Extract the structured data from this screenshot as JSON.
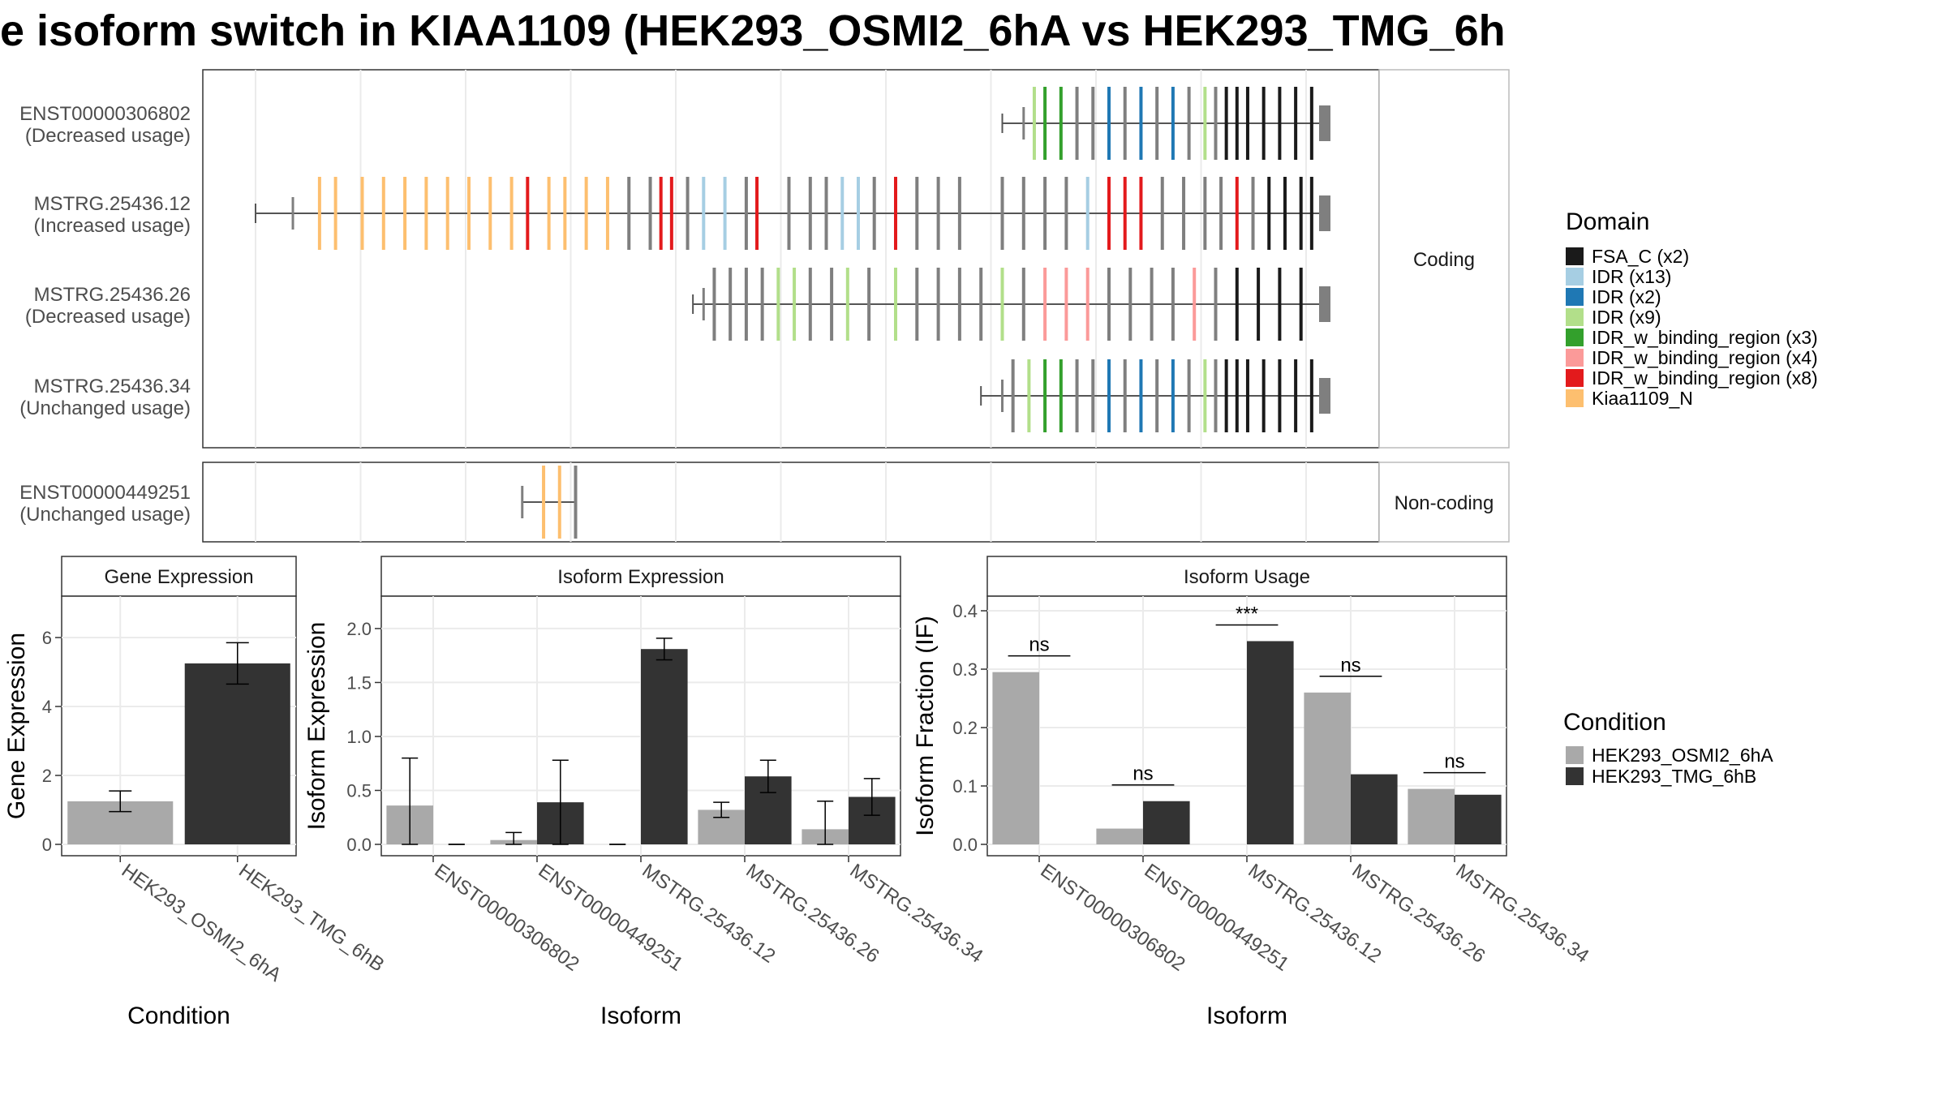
{
  "title": "e isoform switch in KIAA1109 (HEK293_OSMI2_6hA vs HEK293_TMG_6h",
  "colors": {
    "osmi": "#a9a9a9",
    "tmg": "#333333",
    "intron": "#555555",
    "exon": "#7f7f7f",
    "grid": "#ebebeb"
  },
  "structure": {
    "facets": {
      "coding": "Coding",
      "noncoding": "Non-coding"
    },
    "transcripts": [
      {
        "id": "ENST00000306802",
        "usage": "(Decreased usage)",
        "group": "coding",
        "start": 0.7,
        "cds_start": 0.72,
        "exons": [
          [
            0.73,
            "idr_pale"
          ],
          [
            0.74,
            "idr_w_green"
          ],
          [
            0.755,
            "idr_w_green"
          ],
          [
            0.77,
            "exon"
          ],
          [
            0.785,
            "exon"
          ],
          [
            0.8,
            "idr_blue"
          ],
          [
            0.815,
            "exon"
          ],
          [
            0.83,
            "idr_blue"
          ],
          [
            0.845,
            "exon"
          ],
          [
            0.86,
            "idr_blue"
          ],
          [
            0.875,
            "exon"
          ],
          [
            0.89,
            "idr_pale"
          ],
          [
            0.9,
            "exon"
          ],
          [
            0.91,
            "fsa"
          ],
          [
            0.92,
            "fsa"
          ],
          [
            0.93,
            "fsa"
          ],
          [
            0.945,
            "fsa"
          ],
          [
            0.96,
            "fsa"
          ],
          [
            0.975,
            "fsa"
          ],
          [
            0.99,
            "fsa"
          ]
        ]
      },
      {
        "id": "MSTRG.25436.12",
        "usage": "(Increased usage)",
        "group": "coding",
        "start": 0.0,
        "cds_start": 0.035,
        "exons": [
          [
            0.06,
            "kiaa"
          ],
          [
            0.075,
            "kiaa"
          ],
          [
            0.1,
            "kiaa"
          ],
          [
            0.12,
            "kiaa"
          ],
          [
            0.14,
            "kiaa"
          ],
          [
            0.16,
            "kiaa"
          ],
          [
            0.18,
            "kiaa"
          ],
          [
            0.2,
            "kiaa"
          ],
          [
            0.22,
            "kiaa"
          ],
          [
            0.24,
            "kiaa"
          ],
          [
            0.255,
            "idr_w_red"
          ],
          [
            0.275,
            "kiaa"
          ],
          [
            0.29,
            "kiaa"
          ],
          [
            0.31,
            "kiaa"
          ],
          [
            0.33,
            "kiaa"
          ],
          [
            0.35,
            "exon"
          ],
          [
            0.37,
            "exon"
          ],
          [
            0.38,
            "idr_w_red"
          ],
          [
            0.39,
            "idr_w_red"
          ],
          [
            0.405,
            "exon"
          ],
          [
            0.42,
            "idr_light"
          ],
          [
            0.44,
            "idr_light"
          ],
          [
            0.46,
            "exon"
          ],
          [
            0.47,
            "idr_w_red"
          ],
          [
            0.5,
            "exon"
          ],
          [
            0.52,
            "exon"
          ],
          [
            0.535,
            "exon"
          ],
          [
            0.55,
            "idr_light"
          ],
          [
            0.565,
            "idr_light"
          ],
          [
            0.58,
            "exon"
          ],
          [
            0.6,
            "idr_w_red"
          ],
          [
            0.62,
            "exon"
          ],
          [
            0.64,
            "exon"
          ],
          [
            0.66,
            "exon"
          ],
          [
            0.7,
            "exon"
          ],
          [
            0.72,
            "exon"
          ],
          [
            0.74,
            "exon"
          ],
          [
            0.76,
            "exon"
          ],
          [
            0.78,
            "idr_light"
          ],
          [
            0.8,
            "idr_w_red"
          ],
          [
            0.815,
            "idr_w_red"
          ],
          [
            0.83,
            "idr_w_red"
          ],
          [
            0.85,
            "exon"
          ],
          [
            0.87,
            "exon"
          ],
          [
            0.89,
            "exon"
          ],
          [
            0.905,
            "exon"
          ],
          [
            0.92,
            "idr_w_red"
          ],
          [
            0.935,
            "exon"
          ],
          [
            0.95,
            "fsa"
          ],
          [
            0.965,
            "fsa"
          ],
          [
            0.98,
            "fsa"
          ],
          [
            0.99,
            "fsa"
          ]
        ]
      },
      {
        "id": "MSTRG.25436.26",
        "usage": "(Decreased usage)",
        "group": "coding",
        "start": 0.41,
        "cds_start": 0.42,
        "exons": [
          [
            0.43,
            "exon"
          ],
          [
            0.445,
            "exon"
          ],
          [
            0.46,
            "exon"
          ],
          [
            0.475,
            "exon"
          ],
          [
            0.49,
            "idr_pale"
          ],
          [
            0.505,
            "idr_pale"
          ],
          [
            0.52,
            "exon"
          ],
          [
            0.54,
            "exon"
          ],
          [
            0.555,
            "idr_pale"
          ],
          [
            0.575,
            "exon"
          ],
          [
            0.6,
            "idr_pale"
          ],
          [
            0.62,
            "exon"
          ],
          [
            0.64,
            "exon"
          ],
          [
            0.66,
            "exon"
          ],
          [
            0.68,
            "exon"
          ],
          [
            0.7,
            "idr_pale"
          ],
          [
            0.72,
            "exon"
          ],
          [
            0.74,
            "idr_w_pink"
          ],
          [
            0.76,
            "idr_w_pink"
          ],
          [
            0.78,
            "idr_w_pink"
          ],
          [
            0.8,
            "exon"
          ],
          [
            0.82,
            "exon"
          ],
          [
            0.84,
            "exon"
          ],
          [
            0.86,
            "exon"
          ],
          [
            0.88,
            "idr_w_pink"
          ],
          [
            0.9,
            "exon"
          ],
          [
            0.92,
            "fsa"
          ],
          [
            0.94,
            "fsa"
          ],
          [
            0.96,
            "fsa"
          ],
          [
            0.98,
            "fsa"
          ]
        ]
      },
      {
        "id": "MSTRG.25436.34",
        "usage": "(Unchanged usage)",
        "group": "coding",
        "start": 0.68,
        "cds_start": 0.7,
        "exons": [
          [
            0.71,
            "exon"
          ],
          [
            0.725,
            "idr_pale"
          ],
          [
            0.74,
            "idr_w_green"
          ],
          [
            0.755,
            "idr_w_green"
          ],
          [
            0.77,
            "exon"
          ],
          [
            0.785,
            "exon"
          ],
          [
            0.8,
            "idr_blue"
          ],
          [
            0.815,
            "exon"
          ],
          [
            0.83,
            "idr_blue"
          ],
          [
            0.845,
            "exon"
          ],
          [
            0.86,
            "idr_blue"
          ],
          [
            0.875,
            "exon"
          ],
          [
            0.89,
            "idr_pale"
          ],
          [
            0.9,
            "exon"
          ],
          [
            0.91,
            "fsa"
          ],
          [
            0.92,
            "fsa"
          ],
          [
            0.93,
            "fsa"
          ],
          [
            0.945,
            "fsa"
          ],
          [
            0.96,
            "fsa"
          ],
          [
            0.975,
            "fsa"
          ],
          [
            0.99,
            "fsa"
          ]
        ]
      },
      {
        "id": "ENST00000449251",
        "usage": "(Unchanged usage)",
        "group": "noncoding",
        "start": 0.25,
        "cds_start": 0.25,
        "end": 0.3,
        "exons": [
          [
            0.27,
            "kiaa"
          ],
          [
            0.285,
            "kiaa"
          ],
          [
            0.3,
            "exon"
          ]
        ]
      }
    ]
  },
  "legend_domain": {
    "title": "Domain",
    "items": [
      {
        "key": "fsa",
        "label": "FSA_C (x2)",
        "color": "#1a1a1a"
      },
      {
        "key": "idr_light",
        "label": "IDR (x13)",
        "color": "#a6cee3"
      },
      {
        "key": "idr_blue",
        "label": "IDR (x2)",
        "color": "#1f78b4"
      },
      {
        "key": "idr_pale",
        "label": "IDR (x9)",
        "color": "#b2df8a"
      },
      {
        "key": "idr_w_green",
        "label": "IDR_w_binding_region (x3)",
        "color": "#33a02c"
      },
      {
        "key": "idr_w_pink",
        "label": "IDR_w_binding_region (x4)",
        "color": "#fb9a99"
      },
      {
        "key": "idr_w_red",
        "label": "IDR_w_binding_region (x8)",
        "color": "#e31a1c"
      },
      {
        "key": "kiaa",
        "label": "Kiaa1109_N",
        "color": "#fdbf6f"
      }
    ]
  },
  "legend_condition": {
    "title": "Condition",
    "items": [
      {
        "label": "HEK293_OSMI2_6hA",
        "color": "#a9a9a9"
      },
      {
        "label": "HEK293_TMG_6hB",
        "color": "#333333"
      }
    ]
  },
  "chart_data": [
    {
      "type": "bar",
      "title": "Gene Expression",
      "xlabel": "Condition",
      "ylabel": "Gene Expression",
      "ylim": [
        0,
        7.2
      ],
      "yticks": [
        0,
        2,
        4,
        6
      ],
      "categories": [
        "HEK293_OSMI2_6hA",
        "HEK293_TMG_6hB"
      ],
      "values": [
        1.25,
        5.25
      ],
      "errors": [
        [
          0.95,
          1.55
        ],
        [
          4.65,
          5.85
        ]
      ]
    },
    {
      "type": "bar",
      "title": "Isoform Expression",
      "xlabel": "Isoform",
      "ylabel": "Isoform Expression",
      "ylim": [
        0,
        2.3
      ],
      "yticks": [
        0.0,
        0.5,
        1.0,
        1.5,
        2.0
      ],
      "categories": [
        "ENST00000306802",
        "ENST00000449251",
        "MSTRG.25436.12",
        "MSTRG.25436.26",
        "MSTRG.25436.34"
      ],
      "series": [
        {
          "name": "HEK293_OSMI2_6hA",
          "values": [
            0.36,
            0.04,
            0.0,
            0.32,
            0.14
          ],
          "errors": [
            [
              0.0,
              0.8
            ],
            [
              0.0,
              0.11
            ],
            [
              0.0,
              0.0
            ],
            [
              0.25,
              0.39
            ],
            [
              0.0,
              0.4
            ]
          ]
        },
        {
          "name": "HEK293_TMG_6hB",
          "values": [
            0.0,
            0.39,
            1.81,
            0.63,
            0.44
          ],
          "errors": [
            [
              0.0,
              0.0
            ],
            [
              0.0,
              0.78
            ],
            [
              1.71,
              1.91
            ],
            [
              0.48,
              0.78
            ],
            [
              0.27,
              0.61
            ]
          ]
        }
      ]
    },
    {
      "type": "bar",
      "title": "Isoform Usage",
      "xlabel": "Isoform",
      "ylabel": "Isoform Fraction (IF)",
      "ylim": [
        0,
        0.425
      ],
      "yticks": [
        0.0,
        0.1,
        0.2,
        0.3,
        0.4
      ],
      "categories": [
        "ENST00000306802",
        "ENST00000449251",
        "MSTRG.25436.12",
        "MSTRG.25436.26",
        "MSTRG.25436.34"
      ],
      "series": [
        {
          "name": "HEK293_OSMI2_6hA",
          "values": [
            0.295,
            0.027,
            0.0,
            0.26,
            0.095
          ]
        },
        {
          "name": "HEK293_TMG_6hB",
          "values": [
            0.0,
            0.074,
            0.348,
            0.12,
            0.085
          ]
        }
      ],
      "significance": [
        "ns",
        "ns",
        "***",
        "ns",
        "ns"
      ]
    }
  ]
}
